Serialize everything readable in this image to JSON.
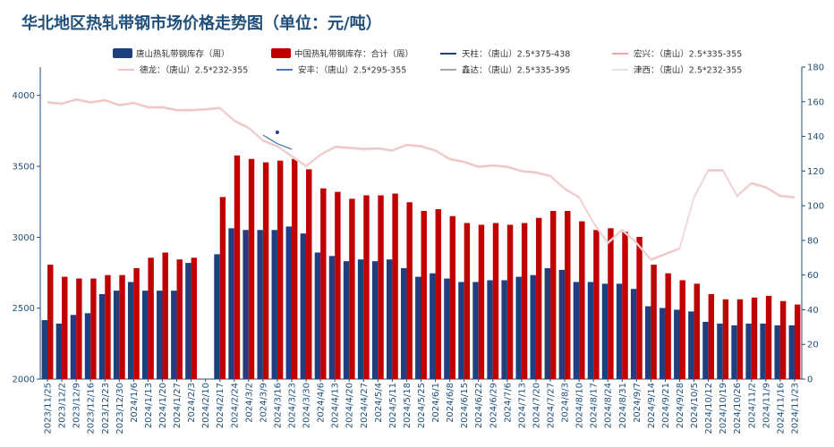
{
  "chart_data": {
    "type": "bar+line",
    "title": "华北地区热轧带钢市场价格走势图（单位：元/吨）",
    "left_axis": {
      "min": 2000,
      "max": 4200,
      "ticks": [
        2000,
        2500,
        3000,
        3500,
        4000
      ]
    },
    "right_axis": {
      "min": 0,
      "max": 180,
      "ticks": [
        0,
        20,
        40,
        60,
        80,
        100,
        120,
        140,
        160,
        180
      ]
    },
    "categories": [
      "2023/11/25",
      "2023/12/2",
      "2023/12/9",
      "2023/12/16",
      "2023/12/23",
      "2023/12/30",
      "2024/1/6",
      "2024/1/13",
      "2024/1/20",
      "2024/1/27",
      "2024/2/3",
      "2024/2/10",
      "2024/2/17",
      "2024/2/24",
      "2024/3/2",
      "2024/3/9",
      "2024/3/16",
      "2024/3/23",
      "2024/3/30",
      "2024/4/6",
      "2024/4/13",
      "2024/4/20",
      "2024/4/27",
      "2024/5/4",
      "2024/5/11",
      "2024/5/18",
      "2024/5/25",
      "2024/6/1",
      "2024/6/8",
      "2024/6/15",
      "2024/6/22",
      "2024/6/29",
      "2024/7/6",
      "2024/7/13",
      "2024/7/20",
      "2024/7/27",
      "2024/8/3",
      "2024/8/10",
      "2024/8/17",
      "2024/8/24",
      "2024/8/31",
      "2024/9/7",
      "2024/9/14",
      "2024/9/21",
      "2024/9/28",
      "2024/10/5",
      "2024/10/12",
      "2024/10/19",
      "2024/10/26",
      "2024/11/2",
      "2024/11/9",
      "2024/11/16",
      "2024/11/23"
    ],
    "series": [
      {
        "name": "唐山热轧带钢库存（周）",
        "kind": "bar",
        "axis": "right",
        "color": "#1f3f7f",
        "values": [
          34,
          32,
          37,
          38,
          49,
          51,
          56,
          51,
          51,
          51,
          67,
          0,
          72,
          87,
          86,
          86,
          86,
          88,
          84,
          73,
          71,
          68,
          69,
          68,
          69,
          64,
          59,
          61,
          58,
          56,
          56,
          57,
          57,
          59,
          60,
          64,
          63,
          56,
          56,
          55,
          55,
          52,
          42,
          41,
          40,
          39,
          33,
          32,
          31,
          32,
          32,
          31,
          31
        ]
      },
      {
        "name": "中国热轧带钢库存：合计（周）",
        "kind": "bar",
        "axis": "right",
        "color": "#c00000",
        "values": [
          66,
          59,
          58,
          58,
          60,
          60,
          64,
          70,
          73,
          69,
          70,
          0,
          105,
          129,
          127,
          125,
          126,
          127,
          121,
          110,
          108,
          104,
          106,
          106,
          107,
          102,
          97,
          98,
          94,
          90,
          89,
          90,
          89,
          90,
          93,
          97,
          97,
          91,
          86,
          87,
          85,
          82,
          66,
          61,
          57,
          55,
          49,
          46,
          46,
          47,
          48,
          45,
          43
        ]
      },
      {
        "name": "天柱：（唐山）2.5*375-438",
        "kind": "line",
        "axis": "left",
        "color": "#1f3f7f",
        "values": [
          null,
          null,
          null,
          null,
          null,
          null,
          null,
          null,
          null,
          null,
          null,
          null,
          null,
          null,
          null,
          null,
          3740,
          null,
          null,
          null,
          null,
          null,
          null,
          null,
          null,
          null,
          null,
          null,
          null,
          null,
          null,
          null,
          null,
          null,
          null,
          null,
          null,
          null,
          null,
          null,
          null,
          null,
          null,
          null,
          null,
          null,
          null,
          null,
          null,
          null,
          null,
          null,
          null
        ]
      },
      {
        "name": "宏兴：（唐山）2.5*335-355",
        "kind": "line",
        "axis": "left",
        "color": "#f4a6a6",
        "values": [
          3950,
          3940,
          3970,
          3950,
          3965,
          3930,
          3945,
          3915,
          3915,
          3895,
          3895,
          3900,
          3910,
          3820,
          3770,
          3680,
          3640,
          3570,
          3500,
          3580,
          3635,
          3630,
          3620,
          3625,
          3610,
          3650,
          3640,
          3610,
          3550,
          3530,
          3495,
          3505,
          3495,
          3465,
          3455,
          3430,
          3340,
          3280,
          3100,
          2960,
          3050,
          2960,
          2840,
          2880,
          2920,
          3280,
          3470,
          3470,
          3290,
          3380,
          3350,
          3290,
          3280
        ]
      },
      {
        "name": "德龙：（唐山）2.5*232-355",
        "kind": "line",
        "axis": "left",
        "color": "#f9c0c0",
        "values": [
          3955,
          3945,
          3975,
          3955,
          3970,
          3935,
          3950,
          3920,
          3920,
          3900,
          3900,
          3905,
          3915,
          3825,
          3775,
          3685,
          3645,
          3575,
          3505,
          3585,
          3640,
          3635,
          3625,
          3630,
          3615,
          3655,
          3645,
          3615,
          3555,
          3535,
          3500,
          3510,
          3500,
          3470,
          3460,
          3435,
          3345,
          3285,
          3105,
          2965,
          3055,
          2965,
          2845,
          2885,
          2925,
          3285,
          3475,
          3475,
          3295,
          3385,
          3355,
          3295,
          3285
        ]
      },
      {
        "name": "安丰：（唐山）2.5*295-355",
        "kind": "line",
        "axis": "left",
        "color": "#4a78c2",
        "values": [
          null,
          null,
          null,
          null,
          null,
          null,
          null,
          null,
          null,
          null,
          null,
          null,
          null,
          null,
          null,
          3720,
          3660,
          3620,
          null,
          null,
          null,
          null,
          null,
          null,
          null,
          null,
          null,
          null,
          null,
          null,
          null,
          null,
          null,
          null,
          null,
          null,
          null,
          null,
          null,
          null,
          null,
          null,
          null,
          null,
          null,
          null,
          null,
          null,
          null,
          null,
          null,
          null,
          null
        ]
      },
      {
        "name": "鑫达：（唐山）2.5*335-395",
        "kind": "line",
        "axis": "left",
        "color": "#a6a6a6",
        "values": [
          null,
          null,
          null,
          null,
          null,
          null,
          null,
          null,
          null,
          null,
          null,
          null,
          null,
          null,
          null,
          null,
          null,
          null,
          null,
          null,
          null,
          null,
          null,
          null,
          null,
          null,
          null,
          null,
          null,
          null,
          null,
          null,
          null,
          null,
          null,
          null,
          null,
          null,
          null,
          null,
          null,
          null,
          null,
          null,
          null,
          null,
          null,
          null,
          null,
          null,
          null,
          null,
          null
        ]
      },
      {
        "name": "津西：（唐山）2.5*232-355",
        "kind": "line",
        "axis": "left",
        "color": "#e8e0e0",
        "values": [
          3945,
          3935,
          3965,
          3945,
          3960,
          3925,
          3940,
          3910,
          3910,
          3890,
          3890,
          3895,
          3905,
          3815,
          3765,
          3675,
          3635,
          3565,
          3495,
          3575,
          3630,
          3625,
          3615,
          3620,
          3605,
          3645,
          3635,
          3605,
          3545,
          3525,
          3490,
          3500,
          3490,
          3460,
          3450,
          3425,
          3335,
          3275,
          3095,
          2955,
          3045,
          2955,
          2835,
          2875,
          2915,
          3275,
          3465,
          3465,
          3285,
          3375,
          3345,
          3285,
          3275
        ]
      }
    ]
  }
}
